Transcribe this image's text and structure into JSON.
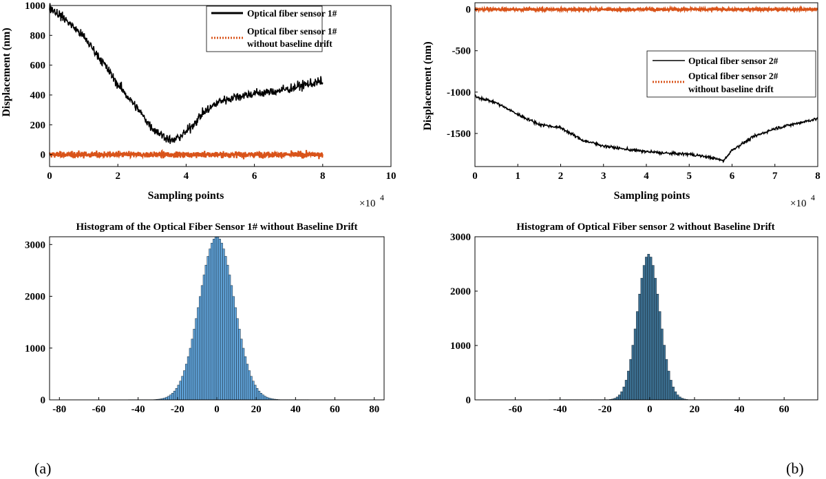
{
  "panel_labels": [
    "(a)",
    "(b)"
  ],
  "chart_data": [
    {
      "type": "line",
      "xlabel": "Sampling points",
      "ylabel": "Displacement (nm)",
      "x_exponent": "×10",
      "x_exponent_power": "4",
      "xlim": [
        0,
        10
      ],
      "ylim": [
        -80,
        1000
      ],
      "x_ticks": [
        "0",
        "2",
        "4",
        "6",
        "8",
        "10"
      ],
      "y_ticks": [
        "0",
        "200",
        "400",
        "600",
        "800",
        "1000"
      ],
      "legend_position": "top-right",
      "series": [
        {
          "name": "Optical fiber sensor 1#",
          "color": "#000000",
          "style": "solid",
          "x": [
            0,
            0.5,
            1,
            1.5,
            2,
            2.5,
            3,
            3.3,
            3.6,
            4,
            4.5,
            5,
            5.5,
            6,
            6.5,
            7,
            7.5,
            8
          ],
          "y": [
            990,
            900,
            790,
            640,
            470,
            330,
            180,
            130,
            90,
            150,
            280,
            360,
            390,
            410,
            420,
            440,
            470,
            490
          ]
        },
        {
          "name": "Optical fiber sensor 1#",
          "name_line2": "without baseline drift",
          "color": "#D95319",
          "style": "dotted",
          "x": [
            0,
            8
          ],
          "y": [
            0,
            0
          ]
        }
      ]
    },
    {
      "type": "line",
      "xlabel": "Sampling points",
      "ylabel": "Displacement (nm)",
      "x_exponent": "×10",
      "x_exponent_power": "4",
      "xlim": [
        0,
        8
      ],
      "ylim": [
        -1900,
        80
      ],
      "x_ticks": [
        "0",
        "1",
        "2",
        "3",
        "4",
        "5",
        "6",
        "7",
        "8"
      ],
      "y_ticks": [
        "0",
        "-500",
        "-1000",
        "-1500"
      ],
      "legend_position": "right",
      "series": [
        {
          "name": "Optical fiber sensor 2#",
          "color": "#000000",
          "style": "solid",
          "x": [
            0,
            0.5,
            1,
            1.5,
            2,
            2.5,
            3,
            3.5,
            4,
            4.5,
            5,
            5.5,
            5.8,
            6,
            6.5,
            7,
            7.5,
            8
          ],
          "y": [
            -1050,
            -1130,
            -1270,
            -1390,
            -1430,
            -1580,
            -1650,
            -1690,
            -1720,
            -1740,
            -1750,
            -1790,
            -1830,
            -1700,
            -1540,
            -1440,
            -1380,
            -1320
          ]
        },
        {
          "name": "Optical fiber sensor 2#",
          "name_line2": "without baseline drift",
          "color": "#D95319",
          "style": "dotted",
          "x": [
            0,
            8
          ],
          "y": [
            0,
            0
          ]
        }
      ]
    },
    {
      "type": "bar",
      "title": "Histogram of the Optical Fiber Sensor 1# without Baseline Drift",
      "xlim": [
        -85,
        85
      ],
      "ylim": [
        0,
        3150
      ],
      "x_ticks": [
        "-80",
        "-60",
        "-40",
        "-20",
        "0",
        "20",
        "40",
        "60",
        "80"
      ],
      "y_ticks": [
        "0",
        "1000",
        "2000",
        "3000"
      ],
      "bar_color": "#5FA2D8",
      "center": 0,
      "sigma": 8.9,
      "peak": 3150,
      "bin_width": 1,
      "range": [
        -45,
        47
      ]
    },
    {
      "type": "bar",
      "title": "Histogram of Optical Fiber sensor 2 without Baseline Drift",
      "xlim": [
        -78,
        75
      ],
      "ylim": [
        0,
        3000
      ],
      "x_ticks": [
        "-60",
        "-40",
        "-20",
        "0",
        "20",
        "40",
        "60"
      ],
      "y_ticks": [
        "0",
        "1000",
        "2000",
        "3000"
      ],
      "bar_color": "#3B6E8F",
      "center": -0.5,
      "sigma": 5.0,
      "peak": 2680,
      "bin_width": 1,
      "range": [
        -45,
        40
      ]
    }
  ]
}
